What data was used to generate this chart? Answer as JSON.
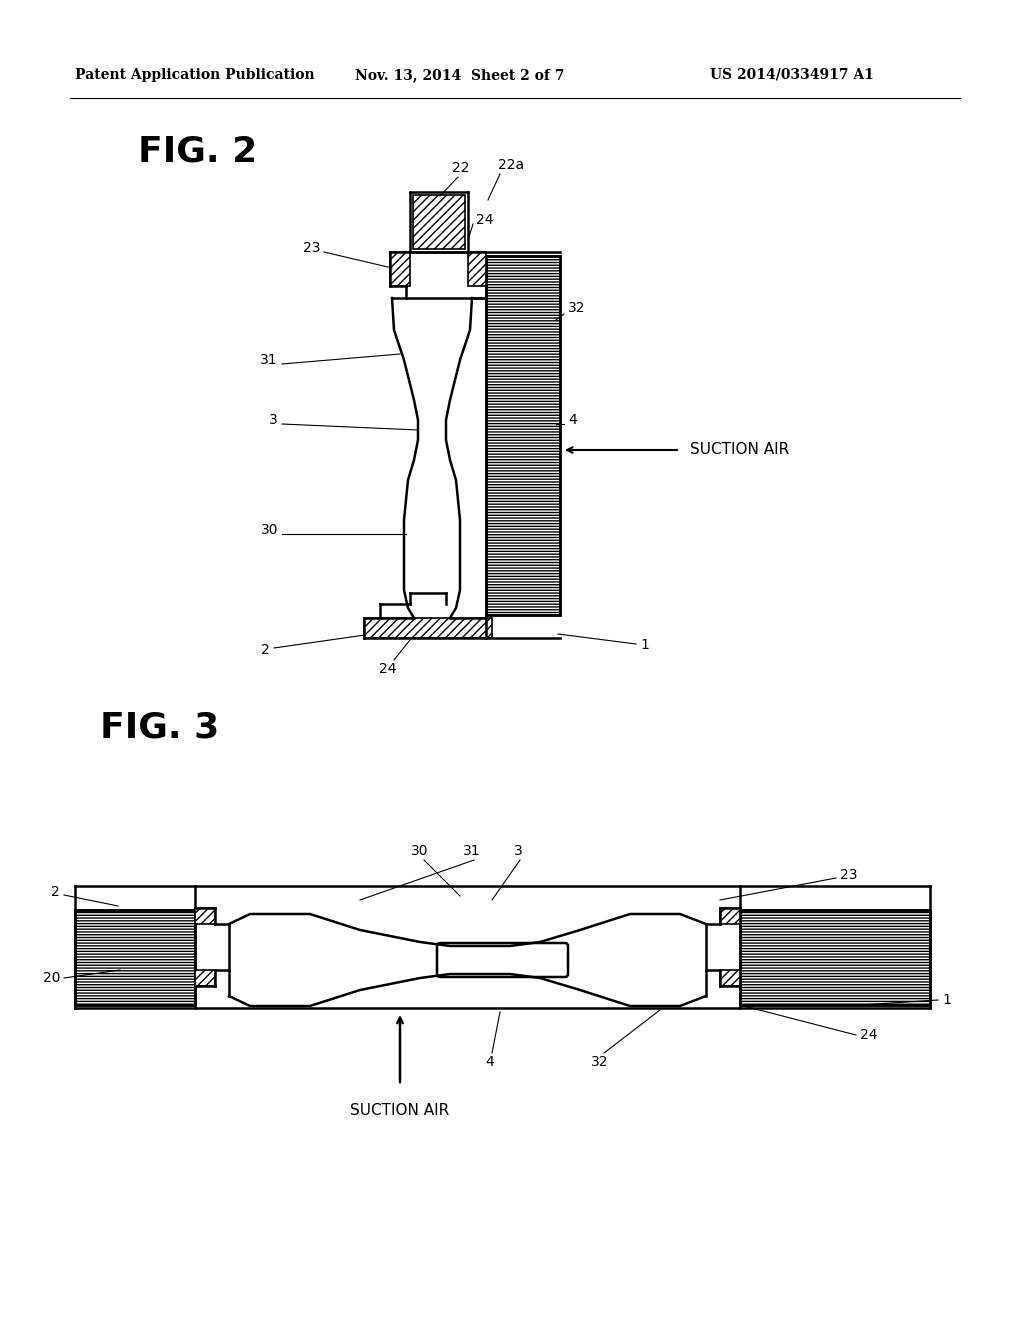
{
  "bg_color": "#ffffff",
  "line_color": "#000000",
  "header_left": "Patent Application Publication",
  "header_mid": "Nov. 13, 2014  Sheet 2 of 7",
  "header_right": "US 2014/0334917 A1",
  "fig2_label": "FIG. 2",
  "fig3_label": "FIG. 3",
  "suction_air": "SUCTION AIR"
}
